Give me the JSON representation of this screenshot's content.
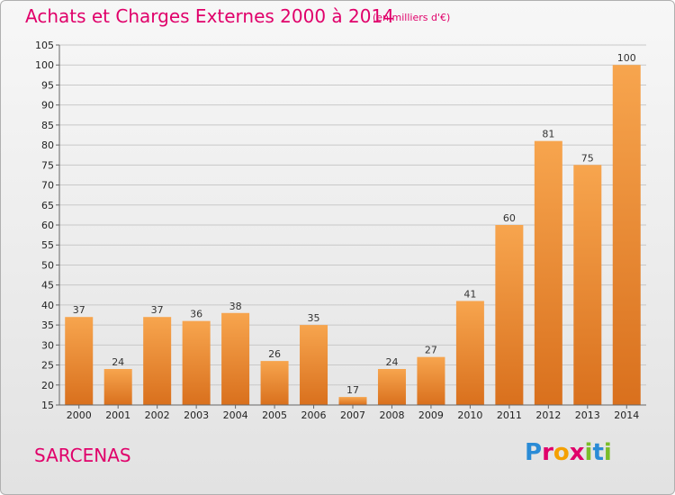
{
  "header": {
    "title": "Achats et Charges Externes 2000 à 2014",
    "unit": "(en milliers d'€)"
  },
  "footer": {
    "commune": "SARCENAS",
    "logo_text": "Proxiti"
  },
  "colors": {
    "title": "#e0006a",
    "bar_light": "#f7a54e",
    "bar_dark": "#d9701d",
    "grid": "#c8c8c8"
  },
  "chart_data": {
    "type": "bar",
    "title": "Achats et Charges Externes 2000 à 2014",
    "subtitle": "(en milliers d'€)",
    "categories": [
      "2000",
      "2001",
      "2002",
      "2003",
      "2004",
      "2005",
      "2006",
      "2007",
      "2008",
      "2009",
      "2010",
      "2011",
      "2012",
      "2013",
      "2014"
    ],
    "values": [
      37,
      24,
      37,
      36,
      38,
      26,
      35,
      17,
      24,
      27,
      41,
      60,
      81,
      75,
      100
    ],
    "ylim": [
      15,
      105
    ],
    "yticks": [
      15,
      20,
      25,
      30,
      35,
      40,
      45,
      50,
      55,
      60,
      65,
      70,
      75,
      80,
      85,
      90,
      95,
      100,
      105
    ],
    "grid": true,
    "legend": "none"
  }
}
